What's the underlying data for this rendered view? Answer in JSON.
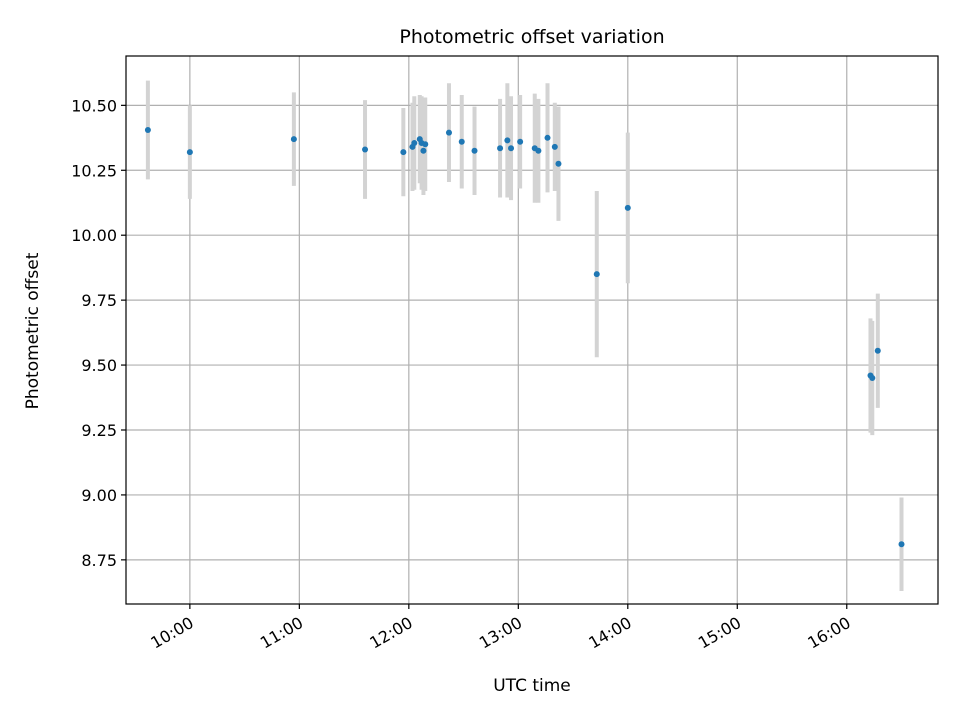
{
  "chart_data": {
    "type": "scatter",
    "title": "Photometric offset variation",
    "xlabel": "UTC time",
    "ylabel": "Photometric offset",
    "x_is_time": true,
    "xlim": [
      "09:25",
      "16:50"
    ],
    "ylim": [
      8.58,
      10.69
    ],
    "xticks": [
      "10:00",
      "11:00",
      "12:00",
      "13:00",
      "14:00",
      "15:00",
      "16:00"
    ],
    "yticks": [
      8.75,
      9.0,
      9.25,
      9.5,
      9.75,
      10.0,
      10.25,
      10.5
    ],
    "ytick_labels": [
      "8.75",
      "9.00",
      "9.25",
      "9.50",
      "9.75",
      "10.00",
      "10.25",
      "10.50"
    ],
    "grid": true,
    "point_color": "#1f77b4",
    "errorbar_color": "#d3d3d3",
    "series": [
      {
        "points": [
          {
            "x": "09:37",
            "y": 10.405,
            "err": 0.19
          },
          {
            "x": "10:00",
            "y": 10.32,
            "err": 0.18
          },
          {
            "x": "10:57",
            "y": 10.37,
            "err": 0.18
          },
          {
            "x": "11:36",
            "y": 10.33,
            "err": 0.19
          },
          {
            "x": "11:57",
            "y": 10.32,
            "err": 0.17
          },
          {
            "x": "12:02",
            "y": 10.34,
            "err": 0.17
          },
          {
            "x": "12:03",
            "y": 10.355,
            "err": 0.18
          },
          {
            "x": "12:06",
            "y": 10.37,
            "err": 0.17
          },
          {
            "x": "12:07",
            "y": 10.355,
            "err": 0.18
          },
          {
            "x": "12:08",
            "y": 10.325,
            "err": 0.17
          },
          {
            "x": "12:09",
            "y": 10.35,
            "err": 0.18
          },
          {
            "x": "12:22",
            "y": 10.395,
            "err": 0.19
          },
          {
            "x": "12:29",
            "y": 10.36,
            "err": 0.18
          },
          {
            "x": "12:36",
            "y": 10.325,
            "err": 0.17
          },
          {
            "x": "12:50",
            "y": 10.335,
            "err": 0.19
          },
          {
            "x": "12:54",
            "y": 10.365,
            "err": 0.22
          },
          {
            "x": "12:56",
            "y": 10.335,
            "err": 0.2
          },
          {
            "x": "13:01",
            "y": 10.36,
            "err": 0.18
          },
          {
            "x": "13:09",
            "y": 10.335,
            "err": 0.21
          },
          {
            "x": "13:11",
            "y": 10.325,
            "err": 0.2
          },
          {
            "x": "13:16",
            "y": 10.375,
            "err": 0.21
          },
          {
            "x": "13:20",
            "y": 10.34,
            "err": 0.17
          },
          {
            "x": "13:22",
            "y": 10.275,
            "err": 0.22
          },
          {
            "x": "13:43",
            "y": 9.85,
            "err": 0.32
          },
          {
            "x": "14:00",
            "y": 10.105,
            "err": 0.29
          },
          {
            "x": "16:13",
            "y": 9.46,
            "err": 0.22
          },
          {
            "x": "16:14",
            "y": 9.45,
            "err": 0.22
          },
          {
            "x": "16:17",
            "y": 9.555,
            "err": 0.22
          },
          {
            "x": "16:30",
            "y": 8.81,
            "err": 0.18
          }
        ]
      }
    ]
  }
}
